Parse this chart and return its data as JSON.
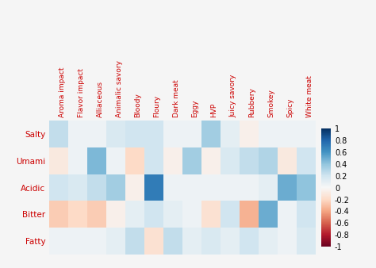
{
  "rows": [
    "Salty",
    "Umami",
    "Acidic",
    "Bitter",
    "Fatty"
  ],
  "cols": [
    "Aroma impact",
    "Flavor impact",
    "Alliaceous",
    "Animalic savory",
    "Bloody",
    "Floury",
    "Dark meat",
    "Eggy",
    "HVP",
    "Juicy savory",
    "Rubbery",
    "Smokey",
    "Spicy",
    "White meat"
  ],
  "matrix": [
    [
      0.25,
      0.05,
      0.05,
      0.15,
      0.2,
      0.2,
      0.05,
      0.05,
      0.35,
      0.1,
      -0.05,
      0.05,
      0.05,
      0.05
    ],
    [
      -0.1,
      0.05,
      0.45,
      0.05,
      -0.2,
      0.2,
      -0.05,
      0.35,
      -0.05,
      0.15,
      0.25,
      0.3,
      -0.1,
      0.2
    ],
    [
      0.2,
      0.15,
      0.25,
      0.35,
      -0.05,
      0.7,
      0.05,
      0.05,
      0.05,
      0.05,
      0.05,
      0.1,
      0.5,
      0.4
    ],
    [
      -0.25,
      -0.2,
      -0.25,
      -0.05,
      0.1,
      0.2,
      0.1,
      0.05,
      -0.15,
      0.2,
      -0.35,
      0.5,
      0.05,
      0.2
    ],
    [
      0.05,
      0.05,
      0.05,
      0.1,
      0.25,
      -0.15,
      0.25,
      0.1,
      0.15,
      0.1,
      0.2,
      0.1,
      0.05,
      0.15
    ]
  ],
  "vmin": -1,
  "vmax": 1,
  "text_color": "#cc0000",
  "background_color": "#f5f5f5",
  "colorbar_label_fontsize": 7,
  "xlabel_fontsize": 6.5,
  "ylabel_fontsize": 7.5
}
